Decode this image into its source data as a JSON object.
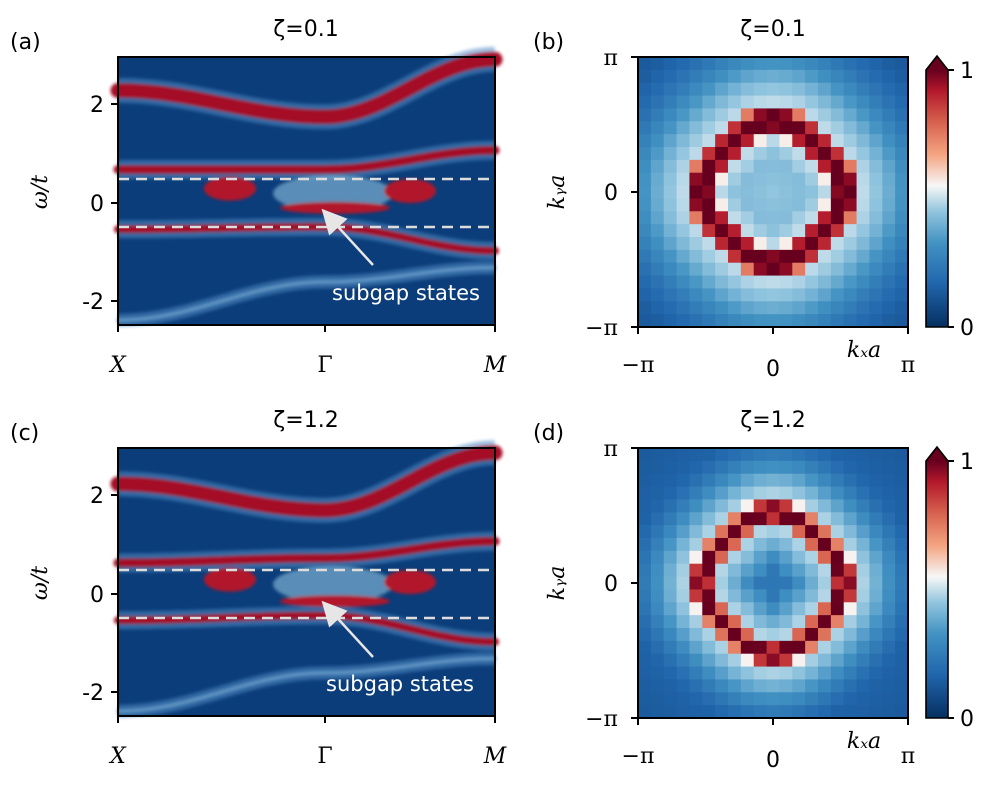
{
  "panels": [
    {
      "letter": "(a)",
      "title": "ζ=0.1"
    },
    {
      "letter": "(b)",
      "title": "ζ=0.1"
    },
    {
      "letter": "(c)",
      "title": "ζ=1.2"
    },
    {
      "letter": "(d)",
      "title": "ζ=1.2"
    }
  ],
  "spectral": {
    "ylabel": "ω/t",
    "yticks": [
      "2",
      "0",
      "-2"
    ],
    "xticks": [
      "X",
      "Γ",
      "M"
    ],
    "annotation": "subgap states"
  },
  "momentum": {
    "xlabel": "kₓa",
    "ylabel": "kᵧa",
    "xticks": [
      "−π",
      "0",
      "π"
    ],
    "yticks": [
      "π",
      "0",
      "−π"
    ],
    "colorbar": {
      "max_label": "1",
      "min_label": "0"
    }
  },
  "colors": {
    "low": "#053061",
    "mid_low": "#2166ac",
    "light_blue": "#92c5de",
    "white": "#f7f7f7",
    "light_red": "#f4a582",
    "high": "#b2182b",
    "max": "#67001f",
    "dashed_line": "#dddddd",
    "arrow": "#e6e6e6"
  },
  "chart_data": [
    {
      "type": "heatmap",
      "title": "ζ=0.1",
      "xlabel": "",
      "ylabel": "ω/t",
      "x_ticks": [
        "X",
        "Γ",
        "M"
      ],
      "ylim": [
        -2.6,
        3.0
      ],
      "y_ticks": [
        2,
        0,
        -2
      ],
      "bands_omega_at_X_Gamma_M": [
        {
          "name": "upper band",
          "values": [
            2.3,
            1.75,
            2.95
          ]
        },
        {
          "name": "middle band",
          "values": [
            0.65,
            0.65,
            1.05
          ]
        },
        {
          "name": "lower band",
          "values": [
            -0.6,
            -0.55,
            -1.05
          ]
        },
        {
          "name": "bottom band",
          "values": [
            -2.5,
            -1.7,
            -1.4
          ]
        }
      ],
      "dashed_lines_omega": [
        0.5,
        -0.5
      ],
      "annotation": {
        "text": "subgap states",
        "points_to": {
          "k": "Γ",
          "omega": -0.15
        }
      }
    },
    {
      "type": "heatmap",
      "title": "ζ=0.1",
      "xlabel": "kₓa",
      "ylabel": "kᵧa",
      "xlim": [
        "−π",
        "π"
      ],
      "ylim": [
        "−π",
        "π"
      ],
      "grid_size": 21,
      "ring_radius_over_pi": 0.5,
      "ring_width_over_pi": 0.16,
      "center_value": 0.4,
      "colorbar_range": [
        0,
        1
      ]
    },
    {
      "type": "heatmap",
      "title": "ζ=1.2",
      "xlabel": "",
      "ylabel": "ω/t",
      "x_ticks": [
        "X",
        "Γ",
        "M"
      ],
      "ylim": [
        -2.6,
        3.0
      ],
      "y_ticks": [
        2,
        0,
        -2
      ],
      "bands_omega_at_X_Gamma_M": [
        {
          "name": "upper band",
          "values": [
            2.25,
            1.7,
            2.9
          ]
        },
        {
          "name": "middle band",
          "values": [
            0.6,
            0.7,
            1.05
          ]
        },
        {
          "name": "lower band",
          "values": [
            -0.6,
            -0.5,
            -1.05
          ]
        },
        {
          "name": "bottom band",
          "values": [
            -2.5,
            -1.7,
            -1.4
          ]
        }
      ],
      "dashed_lines_omega": [
        0.5,
        -0.5
      ],
      "annotation": {
        "text": "subgap states",
        "points_to": {
          "k": "Γ",
          "omega": -0.2
        }
      }
    },
    {
      "type": "heatmap",
      "title": "ζ=1.2",
      "xlabel": "kₓa",
      "ylabel": "kᵧa",
      "xlim": [
        "−π",
        "π"
      ],
      "ylim": [
        "−π",
        "π"
      ],
      "grid_size": 21,
      "ring_radius_over_pi": 0.5,
      "ring_width_over_pi": 0.12,
      "center_value": 0.18,
      "colorbar_range": [
        0,
        1
      ]
    }
  ]
}
